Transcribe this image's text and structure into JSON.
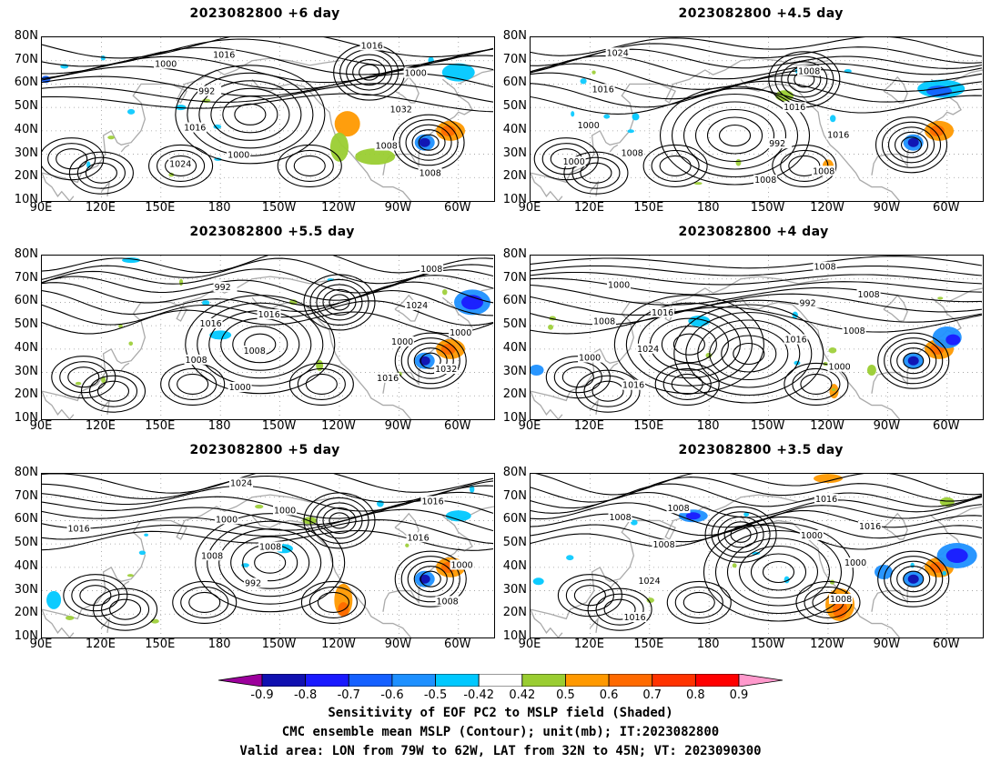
{
  "panels": [
    {
      "title": "2023082800 +6 day",
      "contours": [
        "1000",
        "1016",
        "1024",
        "1008",
        "1016",
        "1032",
        "992",
        "1000",
        "1016",
        "1008",
        "1000"
      ],
      "centers": [
        {
          "lon": 195,
          "lat": 47,
          "type": "high"
        },
        {
          "lon": 255,
          "lat": 65,
          "type": "low"
        },
        {
          "lon": 285,
          "lat": 35,
          "type": "low"
        }
      ]
    },
    {
      "title": "2023082800 +4.5 day",
      "contours": [
        "1008",
        "1000",
        "992",
        "1000",
        "1016",
        "1016",
        "1008",
        "1024",
        "1008",
        "1008",
        "1016"
      ],
      "centers": [
        {
          "lon": 193,
          "lat": 38,
          "type": "high"
        },
        {
          "lon": 228,
          "lat": 62,
          "type": "low"
        },
        {
          "lon": 282,
          "lat": 34,
          "type": "low"
        }
      ]
    },
    {
      "title": "2023082800 +5.5 day",
      "contours": [
        "1016",
        "1008",
        "1000",
        "1016",
        "1024",
        "992",
        "1008",
        "1000",
        "1032",
        "1008",
        "1000",
        "1016"
      ],
      "centers": [
        {
          "lon": 200,
          "lat": 42,
          "type": "high"
        },
        {
          "lon": 240,
          "lat": 60,
          "type": "low"
        },
        {
          "lon": 286,
          "lat": 35,
          "type": "low"
        }
      ]
    },
    {
      "title": "2023082800 +4 day",
      "contours": [
        "1000",
        "1016",
        "1008",
        "992",
        "1000",
        "1008",
        "1016",
        "1000",
        "1024",
        "1008",
        "1016",
        "1008"
      ],
      "centers": [
        {
          "lon": 200,
          "lat": 38,
          "type": "high"
        },
        {
          "lon": 170,
          "lat": 42,
          "type": "high"
        },
        {
          "lon": 283,
          "lat": 35,
          "type": "low"
        }
      ]
    },
    {
      "title": "2023082800 +5 day",
      "contours": [
        "1008",
        "1016",
        "1000",
        "1016",
        "1024",
        "1008",
        "992",
        "1000",
        "1008",
        "1016",
        "1000"
      ],
      "centers": [
        {
          "lon": 205,
          "lat": 42,
          "type": "high"
        },
        {
          "lon": 240,
          "lat": 60,
          "type": "low"
        },
        {
          "lon": 286,
          "lat": 35,
          "type": "low"
        }
      ]
    },
    {
      "title": "2023082800 +3.5 day",
      "contours": [
        "1000",
        "1008",
        "1016",
        "1016",
        "1008",
        "1024",
        "1000",
        "1008",
        "1016",
        "1008"
      ],
      "centers": [
        {
          "lon": 215,
          "lat": 38,
          "type": "high"
        },
        {
          "lon": 196,
          "lat": 54,
          "type": "low"
        },
        {
          "lon": 283,
          "lat": 35,
          "type": "low"
        }
      ]
    }
  ],
  "axes": {
    "lat_labels": [
      "80N",
      "70N",
      "60N",
      "50N",
      "40N",
      "30N",
      "20N",
      "10N"
    ],
    "lon_labels": [
      "90E",
      "120E",
      "150E",
      "180",
      "150W",
      "120W",
      "90W",
      "60W"
    ]
  },
  "colorbar": {
    "labels": [
      "-0.9",
      "-0.8",
      "-0.7",
      "-0.6",
      "-0.5",
      "-0.42",
      "0.42",
      "0.5",
      "0.6",
      "0.7",
      "0.8",
      "0.9"
    ],
    "colors": [
      "#9c009c",
      "#1010b0",
      "#1a1aff",
      "#1560ff",
      "#1e90ff",
      "#00c8ff",
      "#ffffff",
      "#9acd32",
      "#ff9900",
      "#ff6a00",
      "#ff3300",
      "#ff0000",
      "#ff99cc"
    ]
  },
  "caption": {
    "line1": "Sensitivity of EOF PC2 to MSLP field (Shaded)",
    "line2": "CMC ensemble mean MSLP (Contour); unit(mb); IT:2023082800",
    "line3": "Valid area: LON from 79W to 62W, LAT from 32N to 45N; VT: 2023090300"
  }
}
